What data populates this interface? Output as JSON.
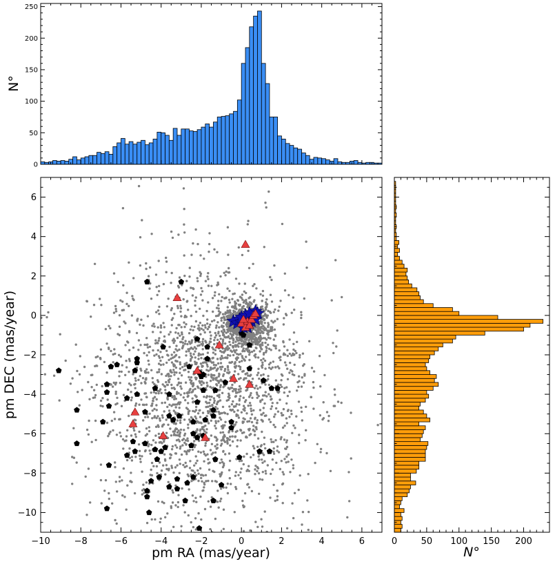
{
  "chart_data": [
    {
      "id": "top_histogram",
      "type": "bar",
      "description_of_axes": "histogram of pm RA",
      "xlim": [
        -10,
        7
      ],
      "ylim": [
        0,
        255
      ],
      "ylabel": "N°",
      "yticks": [
        0,
        50,
        100,
        150,
        200,
        250
      ],
      "bin_start": -10,
      "bin_width": 0.2,
      "counts": [
        4,
        3,
        4,
        6,
        5,
        6,
        5,
        8,
        12,
        7,
        10,
        12,
        14,
        14,
        19,
        17,
        20,
        16,
        28,
        34,
        41,
        32,
        36,
        32,
        35,
        38,
        31,
        34,
        40,
        51,
        50,
        46,
        38,
        57,
        46,
        56,
        56,
        53,
        52,
        55,
        59,
        64,
        59,
        67,
        75,
        76,
        77,
        80,
        84,
        102,
        160,
        185,
        218,
        235,
        243,
        160,
        128,
        75,
        75,
        45,
        40,
        33,
        30,
        26,
        24,
        18,
        14,
        8,
        11,
        10,
        9,
        7,
        5,
        9,
        4,
        3,
        3,
        5,
        6,
        3,
        2,
        3,
        3,
        2,
        2
      ],
      "color": "#3a8ef5"
    },
    {
      "id": "scatter",
      "type": "scatter",
      "xlabel": "pm RA (mas/year)",
      "ylabel": "pm DEC (mas/year)",
      "xlim": [
        -10,
        7
      ],
      "ylim": [
        -11,
        7
      ],
      "xticks": [
        -10,
        -8,
        -6,
        -4,
        -2,
        0,
        2,
        4,
        6
      ],
      "yticks": [
        -10,
        -8,
        -6,
        -4,
        -2,
        0,
        2,
        4,
        6
      ],
      "series": [
        {
          "marker": "circle",
          "color": "#808080",
          "background_field": {
            "count": 3000,
            "cluster_fraction": 0.3,
            "cluster_center": [
              0.2,
              -0.5
            ],
            "cluster_sigma": [
              0.55,
              0.55
            ],
            "field_center": [
              -1.8,
              -3.8
            ],
            "field_sigma": [
              2.6,
              3.1
            ]
          }
        },
        {
          "marker": "pentagon",
          "color": "#000000",
          "points": [
            [
              -4.7,
              1.7
            ],
            [
              -3.0,
              1.7
            ],
            [
              -5.2,
              -2.2
            ],
            [
              -5.2,
              -2.4
            ],
            [
              -3.9,
              -1.6
            ],
            [
              -2.2,
              -1.2
            ],
            [
              -1.7,
              -1.6
            ],
            [
              -1.7,
              -2.2
            ],
            [
              -2.6,
              -2.6
            ],
            [
              -2.1,
              -2.9
            ],
            [
              -2.0,
              -3.1
            ],
            [
              -0.8,
              -3.4
            ],
            [
              -1.3,
              -3.8
            ],
            [
              -1.9,
              -3.8
            ],
            [
              -2.2,
              -4.4
            ],
            [
              -3.6,
              -4.0
            ],
            [
              -4.3,
              -3.7
            ],
            [
              -5.3,
              -2.8
            ],
            [
              -6.2,
              -2.5
            ],
            [
              -6.5,
              -2.6
            ],
            [
              -6.7,
              -3.5
            ],
            [
              -6.7,
              -3.9
            ],
            [
              -5.2,
              -4.0
            ],
            [
              -5.7,
              -4.2
            ],
            [
              -6.6,
              -4.6
            ],
            [
              -8.2,
              -4.8
            ],
            [
              -6.9,
              -5.4
            ],
            [
              -9.1,
              -2.8
            ],
            [
              -4.8,
              -4.9
            ],
            [
              -3.6,
              -5.1
            ],
            [
              -3.1,
              -5.1
            ],
            [
              -3.4,
              -5.3
            ],
            [
              -2.4,
              -5.4
            ],
            [
              -1.8,
              -5.3
            ],
            [
              -1.4,
              -4.8
            ],
            [
              -1.4,
              -5.1
            ],
            [
              -0.5,
              -5.4
            ],
            [
              -0.5,
              -5.7
            ],
            [
              -2.4,
              -6.0
            ],
            [
              -1.9,
              -6.1
            ],
            [
              -5.4,
              -6.4
            ],
            [
              -5.7,
              -7.1
            ],
            [
              -5.3,
              -6.9
            ],
            [
              -4.8,
              -6.5
            ],
            [
              -4.3,
              -6.8
            ],
            [
              -4.0,
              -6.9
            ],
            [
              -3.8,
              -6.7
            ],
            [
              -4.2,
              -7.3
            ],
            [
              -4.5,
              -8.4
            ],
            [
              -4.1,
              -8.2
            ],
            [
              -4.7,
              -8.9
            ],
            [
              -3.2,
              -8.3
            ],
            [
              -2.7,
              -8.5
            ],
            [
              -2.4,
              -8.2
            ],
            [
              -3.2,
              -8.8
            ],
            [
              -3.6,
              -8.7
            ],
            [
              -4.7,
              -9.2
            ],
            [
              -2.8,
              -9.4
            ],
            [
              -4.6,
              -10.0
            ],
            [
              -6.7,
              -9.8
            ],
            [
              -6.6,
              -7.6
            ],
            [
              -8.2,
              -6.5
            ],
            [
              -2.5,
              -6.6
            ],
            [
              -1.3,
              -7.3
            ],
            [
              -1.0,
              -8.6
            ],
            [
              -1.4,
              -9.4
            ],
            [
              -2.1,
              -10.8
            ],
            [
              1.1,
              -3.3
            ],
            [
              1.5,
              -3.7
            ],
            [
              1.8,
              -3.7
            ],
            [
              1.4,
              -6.9
            ],
            [
              0.9,
              -6.9
            ],
            [
              -0.1,
              -7.2
            ],
            [
              0.4,
              -2.7
            ],
            [
              0.4,
              -1.5
            ],
            [
              -1.9,
              -3.0
            ],
            [
              -2.2,
              -6.2
            ],
            [
              0.0,
              -0.9
            ],
            [
              0.1,
              -1.0
            ]
          ]
        },
        {
          "marker": "star",
          "color": "#1010b0",
          "points": [
            [
              -0.4,
              -0.3
            ],
            [
              -0.2,
              -0.4
            ],
            [
              -0.1,
              -0.2
            ],
            [
              0.1,
              -0.3
            ],
            [
              0.2,
              -0.5
            ],
            [
              0.3,
              -0.2
            ],
            [
              0.4,
              -0.4
            ],
            [
              0.5,
              -0.1
            ],
            [
              0.6,
              0.0
            ],
            [
              0.7,
              0.2
            ],
            [
              0.8,
              0.1
            ],
            [
              0.1,
              -0.6
            ],
            [
              0.3,
              -0.6
            ],
            [
              0.5,
              -0.3
            ],
            [
              0.7,
              -0.2
            ],
            [
              0.0,
              -0.1
            ],
            [
              0.2,
              0.0
            ],
            [
              0.4,
              0.1
            ]
          ]
        },
        {
          "marker": "triangle",
          "color": "#e84040",
          "points": [
            [
              0.2,
              3.6
            ],
            [
              -3.2,
              0.9
            ],
            [
              -1.1,
              -1.5
            ],
            [
              -2.2,
              -2.8
            ],
            [
              -0.4,
              -3.2
            ],
            [
              0.4,
              -3.5
            ],
            [
              -5.3,
              -4.9
            ],
            [
              -5.4,
              -5.5
            ],
            [
              -3.9,
              -6.1
            ],
            [
              -1.8,
              -6.2
            ],
            [
              0.0,
              -0.4
            ],
            [
              0.2,
              -0.6
            ],
            [
              0.3,
              -0.3
            ],
            [
              0.4,
              -0.5
            ],
            [
              0.5,
              -0.2
            ],
            [
              0.6,
              0.0
            ],
            [
              0.7,
              0.1
            ],
            [
              0.1,
              -0.2
            ]
          ]
        }
      ]
    },
    {
      "id": "right_histogram",
      "type": "bar",
      "orientation": "horizontal",
      "description_of_axes": "histogram of pm DEC",
      "xlabel": "N°",
      "xlim": [
        0,
        240
      ],
      "xticks": [
        0,
        50,
        100,
        150,
        200
      ],
      "ylim": [
        -11,
        7
      ],
      "bin_start": -11,
      "bin_width": 0.2,
      "counts": [
        10,
        12,
        10,
        12,
        10,
        15,
        8,
        10,
        12,
        20,
        23,
        25,
        33,
        25,
        25,
        34,
        38,
        38,
        48,
        48,
        48,
        50,
        52,
        40,
        43,
        45,
        48,
        38,
        55,
        50,
        45,
        38,
        40,
        48,
        53,
        50,
        60,
        68,
        62,
        65,
        55,
        50,
        48,
        53,
        55,
        62,
        68,
        75,
        90,
        95,
        140,
        200,
        210,
        230,
        160,
        100,
        90,
        60,
        45,
        40,
        38,
        35,
        27,
        22,
        20,
        18,
        20,
        15,
        12,
        8,
        5,
        8,
        5,
        7,
        3,
        3,
        2,
        3,
        2,
        2,
        3,
        2,
        3,
        2,
        2,
        2,
        2,
        2,
        2,
        2
      ],
      "color": "#ff9d0a"
    }
  ],
  "labels": {
    "top_ylabel": "N°",
    "scatter_xlabel": "pm RA (mas/year)",
    "scatter_ylabel": "pm DEC (mas/year)",
    "right_xlabel": "N°"
  }
}
